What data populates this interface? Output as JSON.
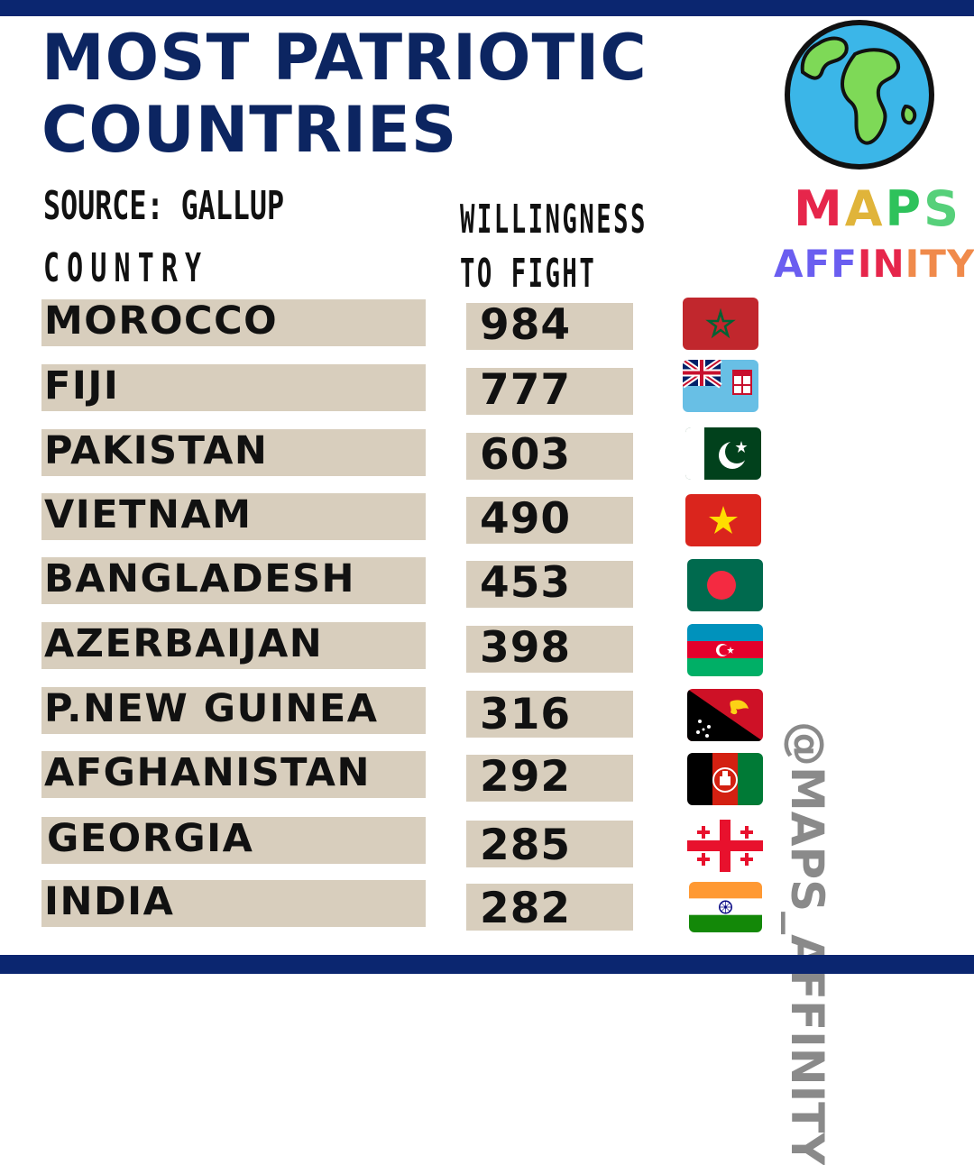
{
  "title": "MOST PATRIOTIC\nCOUNTRIES",
  "source": "SOURCE: GALLUP",
  "headers": {
    "country": "COUNTRY",
    "willingness_line1": "WILLINGNESS",
    "willingness_line2": "TO FIGHT"
  },
  "rows": [
    {
      "country": "MOROCCO",
      "value": "984",
      "flag": "morocco-flag"
    },
    {
      "country": "FIJI",
      "value": "777",
      "flag": "fiji-flag"
    },
    {
      "country": "PAKISTAN",
      "value": "603",
      "flag": "pakistan-flag"
    },
    {
      "country": "VIETNAM",
      "value": "490",
      "flag": "vietnam-flag"
    },
    {
      "country": "BANGLADESH",
      "value": "453",
      "flag": "bangladesh-flag"
    },
    {
      "country": "AZERBAIJAN",
      "value": "398",
      "flag": "azerbaijan-flag"
    },
    {
      "country": "P.NEW GUINEA",
      "value": "316",
      "flag": "papua-new-guinea-flag"
    },
    {
      "country": "AFGHANISTAN",
      "value": "292",
      "flag": "afghanistan-flag"
    },
    {
      "country": "GEORGIA",
      "value": "285",
      "flag": "georgia-flag"
    },
    {
      "country": "INDIA",
      "value": "282",
      "flag": "india-flag"
    }
  ],
  "logo": {
    "maps": "MAPS",
    "affinity": "AFFINITY",
    "icon": "globe-icon"
  },
  "handle": "@MAPS_AFFINITY",
  "colors": {
    "navy": "#0b2670",
    "row_background": "#d8cebd",
    "handle_gray": "#8a8a8a"
  }
}
